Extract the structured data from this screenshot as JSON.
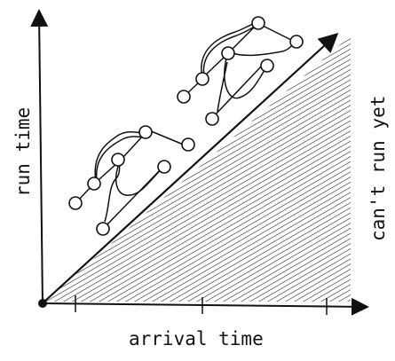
{
  "labels": {
    "x_axis": "arrival time",
    "y_axis": "run time",
    "hatched_region": "can't run yet"
  },
  "colors": {
    "ink": "#111111",
    "background": "#ffffff"
  }
}
